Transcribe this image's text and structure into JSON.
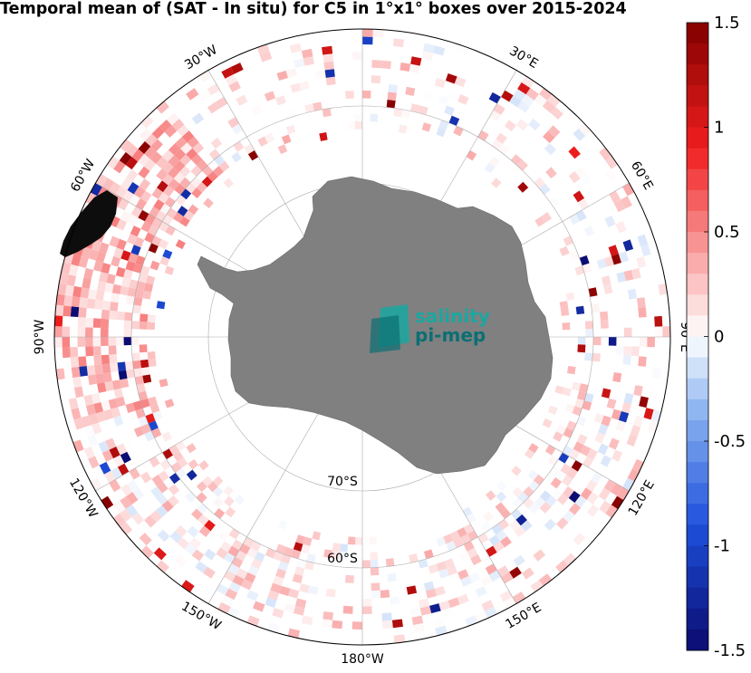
{
  "title": "Temporal mean of (SAT - In situ) for C5 in 1°x1° boxes over 2015-2024",
  "map": {
    "projection": "south-polar stereographic",
    "land_color": "#808080",
    "longitude_labels": [
      {
        "text": "30°W",
        "lon": -30
      },
      {
        "text": "30°E",
        "lon": 30
      },
      {
        "text": "60°W",
        "lon": -60
      },
      {
        "text": "60°E",
        "lon": 60
      },
      {
        "text": "90°W",
        "lon": -90
      },
      {
        "text": "90°E",
        "lon": 90
      },
      {
        "text": "120°W",
        "lon": -120
      },
      {
        "text": "120°E",
        "lon": 120
      },
      {
        "text": "150°W",
        "lon": -150
      },
      {
        "text": "150°E",
        "lon": 150
      },
      {
        "text": "180°W",
        "lon": 180
      }
    ],
    "latitude_labels": [
      {
        "text": "70°S",
        "lat": -70
      },
      {
        "text": "60°S",
        "lat": -60
      }
    ]
  },
  "colorbar": {
    "min": -1.5,
    "max": 1.5,
    "ticks": [
      "1.5",
      "1",
      "0.5",
      "0",
      "-0.5",
      "-1",
      "-1.5"
    ],
    "tick_values": [
      1.5,
      1,
      0.5,
      0,
      -0.5,
      -1,
      -1.5
    ],
    "colormap": "blue-white-red diverging"
  },
  "logo": {
    "line1": "salinity",
    "line2": "pi-mep"
  }
}
